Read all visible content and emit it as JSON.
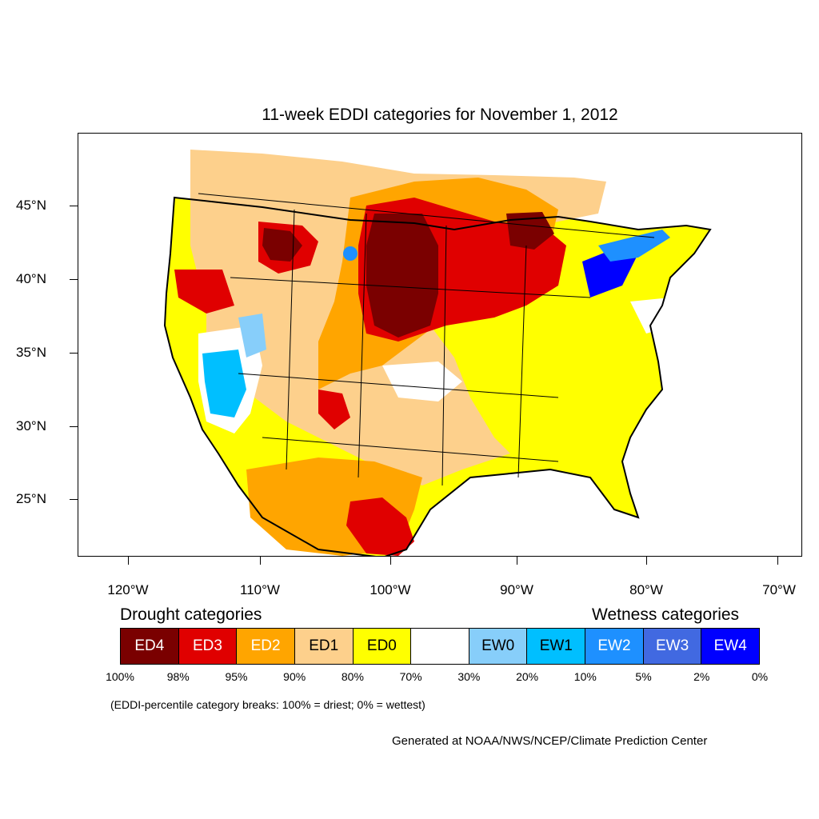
{
  "title": "11-week EDDI categories for November 1, 2012",
  "latitude_labels": [
    "45°N",
    "40°N",
    "35°N",
    "30°N",
    "25°N"
  ],
  "longitude_labels": [
    "120°W",
    "110°W",
    "100°W",
    "90°W",
    "80°W",
    "70°W"
  ],
  "legend": {
    "drought_heading": "Drought categories",
    "wetness_heading": "Wetness categories",
    "categories": [
      {
        "label": "ED4",
        "color": "#7a0000",
        "text_color": "#ffffff"
      },
      {
        "label": "ED3",
        "color": "#e00000",
        "text_color": "#ffffff"
      },
      {
        "label": "ED2",
        "color": "#ffa500",
        "text_color": "#ffffff"
      },
      {
        "label": "ED1",
        "color": "#fdd08c",
        "text_color": "#000000"
      },
      {
        "label": "ED0",
        "color": "#ffff00",
        "text_color": "#000000"
      },
      {
        "label": "",
        "color": "#ffffff",
        "text_color": "#000000"
      },
      {
        "label": "EW0",
        "color": "#87cefa",
        "text_color": "#000000"
      },
      {
        "label": "EW1",
        "color": "#00bfff",
        "text_color": "#000000"
      },
      {
        "label": "EW2",
        "color": "#1e90ff",
        "text_color": "#ffffff"
      },
      {
        "label": "EW3",
        "color": "#4169e1",
        "text_color": "#ffffff"
      },
      {
        "label": "EW4",
        "color": "#0000ff",
        "text_color": "#ffffff"
      }
    ],
    "breaks": [
      "100%",
      "98%",
      "95%",
      "90%",
      "80%",
      "70%",
      "30%",
      "20%",
      "10%",
      "5%",
      "2%",
      "0%"
    ]
  },
  "footnote": "(EDDI-percentile category breaks: 100% = driest; 0% = wettest)",
  "credit": "Generated at NOAA/NWS/NCEP/Climate Prediction Center"
}
